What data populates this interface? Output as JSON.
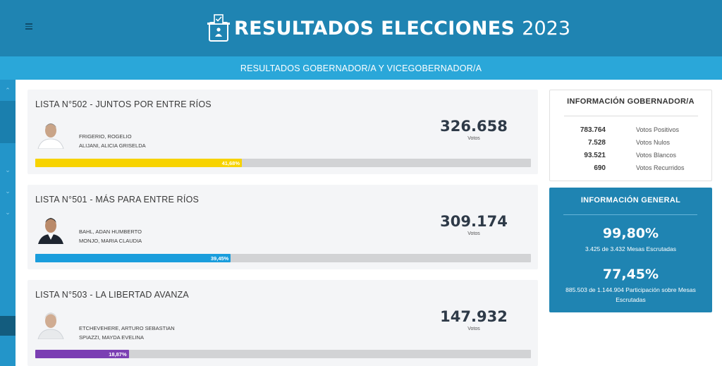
{
  "header": {
    "title": "RESULTADOS ELECCIONES",
    "year": "2023"
  },
  "subheader": {
    "title": "RESULTADOS GOBERNADOR/A Y VICEGOBERNADOR/A"
  },
  "lists": [
    {
      "title": "LISTA N°502 - JUNTOS POR ENTRE RÍOS",
      "candidate1": "FRIGERIO, ROGELIO",
      "candidate2": "ALIJANI, ALICIA GRISELDA",
      "votes": "326.658",
      "votes_label": "Votos",
      "percent_label": "41,68%",
      "percent": 41.68,
      "color": "#f7d300"
    },
    {
      "title": "LISTA N°501 - MÁS PARA ENTRE RÍOS",
      "candidate1": "BAHL, ADAN HUMBERTO",
      "candidate2": "MONJO, MARIA CLAUDIA",
      "votes": "309.174",
      "votes_label": "Votos",
      "percent_label": "39,45%",
      "percent": 39.45,
      "color": "#1a9ddc"
    },
    {
      "title": "LISTA N°503 - LA LIBERTAD AVANZA",
      "candidate1": "ETCHEVEHERE, ARTURO SEBASTIAN",
      "candidate2": "SPIAZZI, MAYDA EVELINA",
      "votes": "147.932",
      "votes_label": "Votos",
      "percent_label": "18,87%",
      "percent": 18.87,
      "color": "#7b3fb3"
    }
  ],
  "info_gobernador": {
    "title": "INFORMACIÓN GOBERNADOR/A",
    "rows": [
      {
        "value": "783.764",
        "label": "Votos Positivos"
      },
      {
        "value": "7.528",
        "label": "Votos Nulos"
      },
      {
        "value": "93.521",
        "label": "Votos Blancos"
      },
      {
        "value": "690",
        "label": "Votos Recurridos"
      }
    ]
  },
  "info_general": {
    "title": "INFORMACIÓN GENERAL",
    "mesas_pct": "99,80%",
    "mesas_text": "3.425 de 3.432 Mesas Escrutadas",
    "part_pct": "77,45%",
    "part_text": "885.503 de 1.144.904 Participación sobre Mesas Escrutadas"
  },
  "colors": {
    "header": "#1f84b2",
    "subheader": "#2aa7d9",
    "card_bg": "#f4f5f7",
    "bar_track": "#d2d3d5"
  },
  "icons": {
    "menu": "hamburger-icon",
    "logo": "ballot-box-icon",
    "sidebar": [
      "chevron-up-icon",
      "chevron-down-icon",
      "chevron-down-icon",
      "chevron-down-icon"
    ]
  }
}
